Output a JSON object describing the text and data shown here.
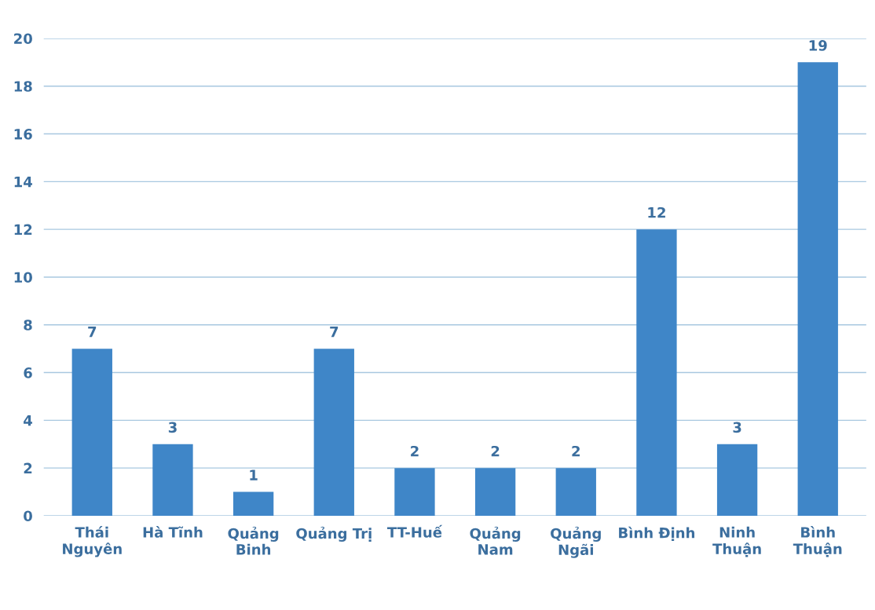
{
  "chart_data": {
    "type": "bar",
    "categories": [
      "Thái\nNguyên",
      "Hà Tĩnh",
      "Quảng\nBinh",
      "Quảng Trị",
      "TT-Huế",
      "Quảng\nNam",
      "Quảng\nNgãi",
      "Bình Định",
      "Ninh\nThuận",
      "Bình\nThuận"
    ],
    "values": [
      7,
      3,
      1,
      7,
      2,
      2,
      2,
      12,
      3,
      19
    ],
    "color": "#3f86c8",
    "ylim": [
      0,
      20
    ],
    "yticks": [
      0,
      2,
      4,
      6,
      8,
      10,
      12,
      14,
      16,
      18,
      20
    ],
    "grid": "y",
    "data_labels": true
  }
}
